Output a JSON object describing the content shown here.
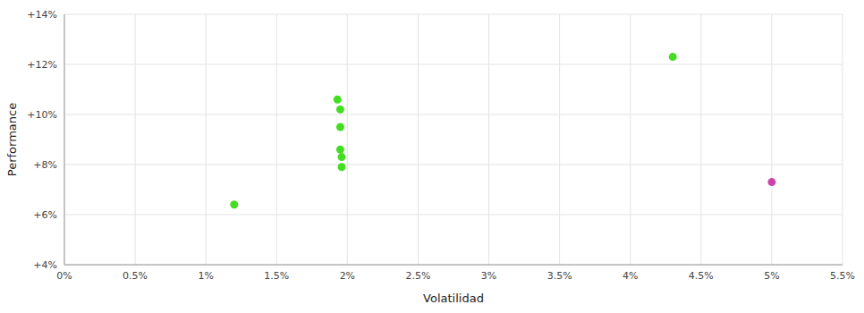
{
  "chart_data": {
    "type": "scatter",
    "xlabel": "Volatilidad",
    "ylabel": "Performance",
    "xlim": [
      0.0,
      0.055
    ],
    "ylim": [
      0.04,
      0.14
    ],
    "xticks": [
      {
        "value": 0.0,
        "label": "0%"
      },
      {
        "value": 0.005,
        "label": "0.5%"
      },
      {
        "value": 0.01,
        "label": "1%"
      },
      {
        "value": 0.015,
        "label": "1.5%"
      },
      {
        "value": 0.02,
        "label": "2%"
      },
      {
        "value": 0.025,
        "label": "2.5%"
      },
      {
        "value": 0.03,
        "label": "3%"
      },
      {
        "value": 0.035,
        "label": "3.5%"
      },
      {
        "value": 0.04,
        "label": "4%"
      },
      {
        "value": 0.045,
        "label": "4.5%"
      },
      {
        "value": 0.05,
        "label": "5%"
      },
      {
        "value": 0.055,
        "label": "5.5%"
      }
    ],
    "yticks": [
      {
        "value": 0.04,
        "label": "+4%"
      },
      {
        "value": 0.06,
        "label": "+6%"
      },
      {
        "value": 0.08,
        "label": "+8%"
      },
      {
        "value": 0.1,
        "label": "+10%"
      },
      {
        "value": 0.12,
        "label": "+12%"
      },
      {
        "value": 0.14,
        "label": "+14%"
      }
    ],
    "grid": true,
    "series": [
      {
        "color": "#44dd22",
        "marker": "circle",
        "x": [
          0.012,
          0.0193,
          0.0195,
          0.0195,
          0.0195,
          0.0196,
          0.0196,
          0.043
        ],
        "values": [
          0.064,
          0.106,
          0.102,
          0.095,
          0.086,
          0.083,
          0.079,
          0.123
        ]
      },
      {
        "color": "#cc44aa",
        "marker": "circle",
        "x": [
          0.05
        ],
        "values": [
          0.073
        ]
      }
    ]
  }
}
